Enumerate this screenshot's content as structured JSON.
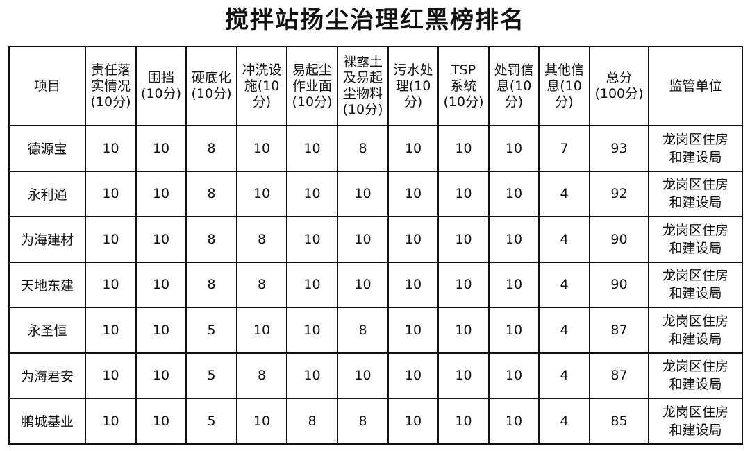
{
  "title": "搅拌站扬尘治理红黑榜排名",
  "headers": [
    [
      "项目"
    ],
    [
      "责任落",
      "实情况",
      "(10分)"
    ],
    [
      "围挡",
      "(10分)"
    ],
    [
      "硬底化",
      "(10分)"
    ],
    [
      "冲洗设",
      "施(10",
      "分)"
    ],
    [
      "易起尘",
      "作业面",
      "(10分)"
    ],
    [
      "裸露土",
      "及易起",
      "尘物料",
      "(10分)"
    ],
    [
      "污水处",
      "理(10",
      "分)"
    ],
    [
      "TSP",
      "系统",
      "(10分)"
    ],
    [
      "处罚信",
      "息(10",
      "分)"
    ],
    [
      "其他信",
      "息(10",
      "分)"
    ],
    [
      "总分",
      "(100分)"
    ],
    [
      "监管单位"
    ]
  ],
  "rows": [
    {
      "cells": [
        "德源宝",
        "10",
        "10",
        "8",
        "10",
        "10",
        "8",
        "10",
        "10",
        "10",
        "7",
        "93"
      ],
      "unit": [
        "龙岗区住房",
        "和建设局"
      ]
    },
    {
      "cells": [
        "永利通",
        "10",
        "10",
        "8",
        "10",
        "10",
        "10",
        "10",
        "10",
        "10",
        "4",
        "92"
      ],
      "unit": [
        "龙岗区住房",
        "和建设局"
      ]
    },
    {
      "cells": [
        "为海建材",
        "10",
        "10",
        "8",
        "8",
        "10",
        "10",
        "10",
        "10",
        "10",
        "4",
        "90"
      ],
      "unit": [
        "龙岗区住房",
        "和建设局"
      ]
    },
    {
      "cells": [
        "天地东建",
        "10",
        "10",
        "8",
        "8",
        "10",
        "10",
        "10",
        "10",
        "10",
        "4",
        "90"
      ],
      "unit": [
        "龙岗区住房",
        "和建设局"
      ]
    },
    {
      "cells": [
        "永圣恒",
        "10",
        "10",
        "5",
        "10",
        "10",
        "8",
        "10",
        "10",
        "10",
        "4",
        "87"
      ],
      "unit": [
        "龙岗区住房",
        "和建设局"
      ]
    },
    {
      "cells": [
        "为海君安",
        "10",
        "10",
        "5",
        "8",
        "10",
        "10",
        "10",
        "10",
        "10",
        "4",
        "87"
      ],
      "unit": [
        "龙岗区住房",
        "和建设局"
      ]
    },
    {
      "cells": [
        "鹏城基业",
        "10",
        "10",
        "5",
        "10",
        "8",
        "8",
        "10",
        "10",
        "10",
        "4",
        "85"
      ],
      "unit": [
        "龙岗区住房",
        "和建设局"
      ]
    }
  ]
}
